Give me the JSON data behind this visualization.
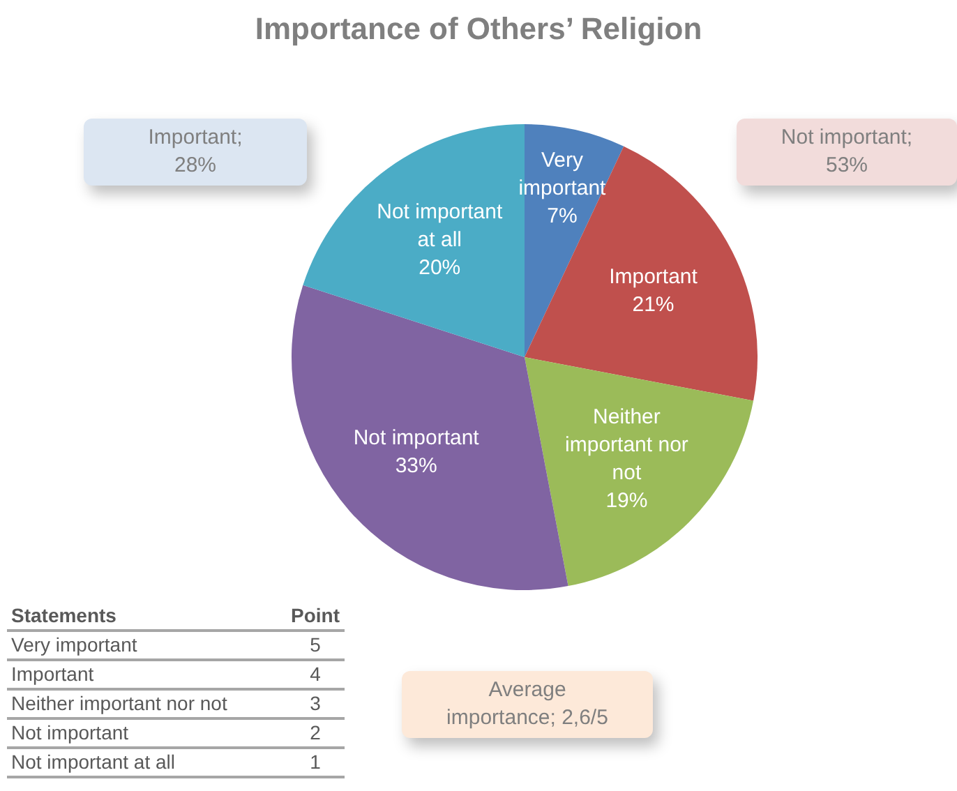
{
  "chart_data": {
    "type": "pie",
    "title": "Importance of Others’ Religion",
    "categories": [
      "Very important",
      "Important",
      "Neither important nor not",
      "Not important",
      "Not important at all"
    ],
    "values": [
      7,
      21,
      19,
      33,
      20
    ],
    "value_labels": [
      "7%",
      "21%",
      "19%",
      "33%",
      "20%"
    ],
    "colors": [
      "#4f81bd",
      "#c0504d",
      "#9bbb59",
      "#8064a2",
      "#4bacc6"
    ],
    "legend": false,
    "annotations": [
      "Important; 28%",
      "Not important; 53%",
      "Average importance; 2,6/5",
      "Statements",
      "Point",
      "Very important",
      "5",
      "Important",
      "4",
      "Neither important nor not",
      "3",
      "Not important",
      "2",
      "Not important at all",
      "1"
    ]
  }
}
